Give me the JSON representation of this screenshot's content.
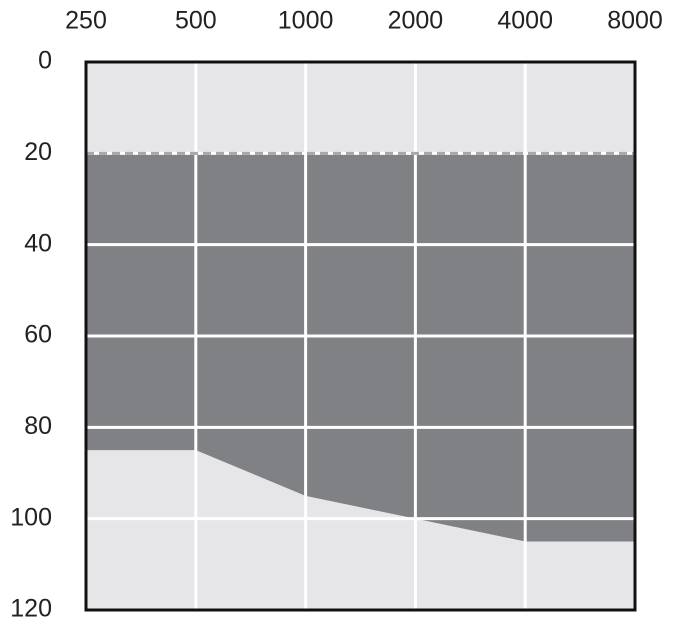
{
  "chart_data": {
    "type": "range-area",
    "x": [
      250,
      500,
      1000,
      2000,
      4000,
      8000
    ],
    "xscale": "log",
    "xlim": [
      250,
      8000
    ],
    "xticks": [
      250,
      500,
      1000,
      2000,
      4000,
      8000
    ],
    "x_axis_position": "top",
    "ylim": [
      0,
      120
    ],
    "yticks": [
      0,
      20,
      40,
      60,
      80,
      100,
      120
    ],
    "y_inverted": true,
    "threshold": 20,
    "threshold_color": "#a7a8ab",
    "values": [
      85,
      85,
      95,
      100,
      105,
      105
    ],
    "color": "#808184",
    "background": "#e6e6e8",
    "grid": true
  }
}
